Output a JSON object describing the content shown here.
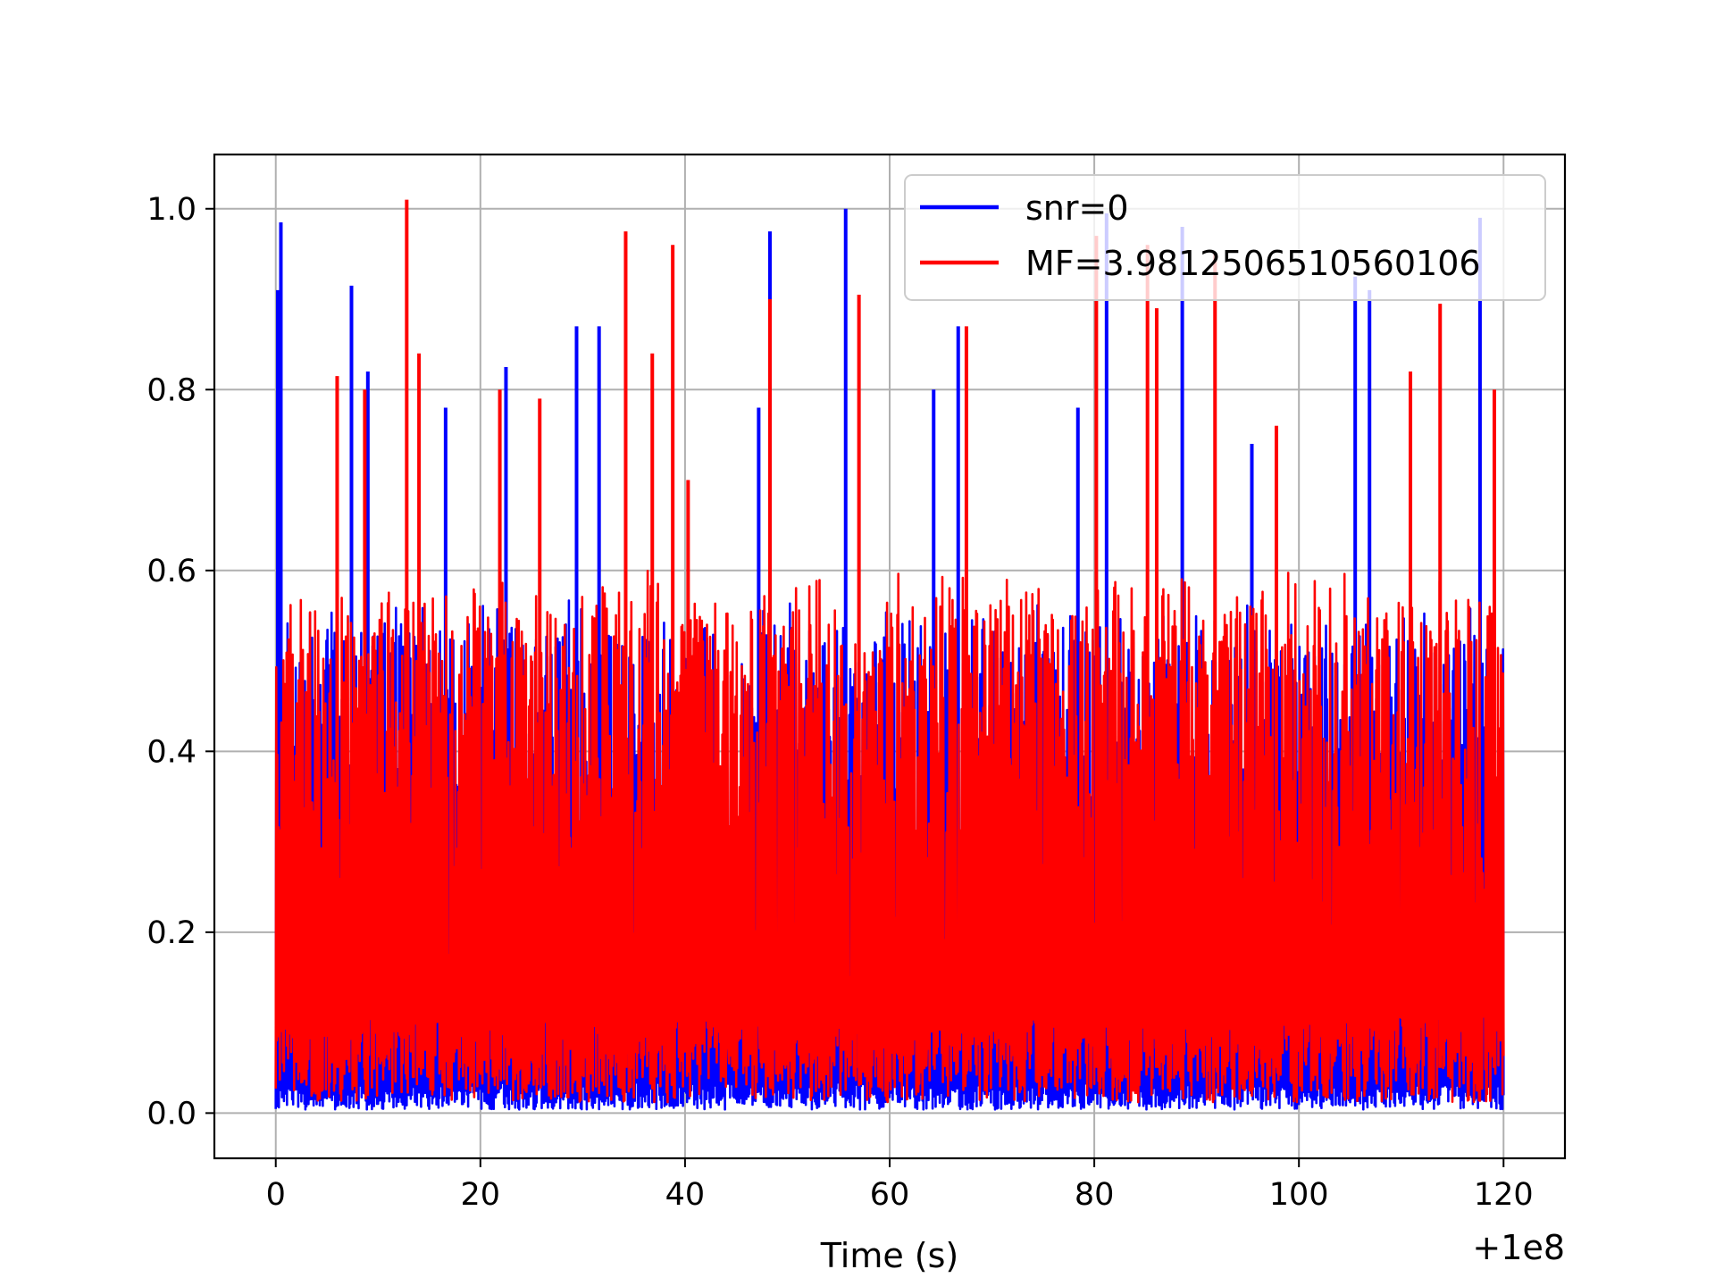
{
  "chart_data": {
    "type": "line",
    "title": "",
    "xlabel": "Time (s)",
    "ylabel": "",
    "x_offset_label": "+1e8",
    "xlim": [
      -6,
      126
    ],
    "ylim": [
      -0.05,
      1.06
    ],
    "x_ticks": [
      0,
      20,
      40,
      60,
      80,
      100,
      120
    ],
    "x_tick_labels": [
      "0",
      "20",
      "40",
      "60",
      "80",
      "100",
      "120"
    ],
    "y_ticks": [
      0.0,
      0.2,
      0.4,
      0.6,
      0.8,
      1.0
    ],
    "y_tick_labels": [
      "0.0",
      "0.2",
      "0.4",
      "0.6",
      "0.8",
      "1.0"
    ],
    "grid": true,
    "legend_position": "top-right",
    "x_range": [
      0,
      120
    ],
    "series": [
      {
        "name": "snr=0",
        "color": "#0000ff",
        "peaks": [
          {
            "x": 0.5,
            "y": 0.985
          },
          {
            "x": 0.2,
            "y": 0.91
          },
          {
            "x": 7.4,
            "y": 0.915
          },
          {
            "x": 9.0,
            "y": 0.82
          },
          {
            "x": 16.6,
            "y": 0.78
          },
          {
            "x": 22.5,
            "y": 0.825
          },
          {
            "x": 29.4,
            "y": 0.87
          },
          {
            "x": 31.6,
            "y": 0.87
          },
          {
            "x": 48.3,
            "y": 0.975
          },
          {
            "x": 47.2,
            "y": 0.78
          },
          {
            "x": 55.7,
            "y": 1.0
          },
          {
            "x": 64.3,
            "y": 0.8
          },
          {
            "x": 66.7,
            "y": 0.87
          },
          {
            "x": 81.2,
            "y": 0.995
          },
          {
            "x": 88.6,
            "y": 0.98
          },
          {
            "x": 95.4,
            "y": 0.74
          },
          {
            "x": 105.5,
            "y": 0.925
          },
          {
            "x": 106.9,
            "y": 0.91
          },
          {
            "x": 117.7,
            "y": 0.99
          },
          {
            "x": 78.4,
            "y": 0.78
          }
        ],
        "peak_level": 0.52,
        "floor_level": 0.02
      },
      {
        "name": "MF=3.9812506510560106",
        "color": "#ff0000",
        "peaks": [
          {
            "x": 12.8,
            "y": 1.01
          },
          {
            "x": 34.2,
            "y": 0.975
          },
          {
            "x": 38.8,
            "y": 0.96
          },
          {
            "x": 48.3,
            "y": 0.9
          },
          {
            "x": 57.0,
            "y": 0.905
          },
          {
            "x": 6.0,
            "y": 0.815
          },
          {
            "x": 8.7,
            "y": 0.8
          },
          {
            "x": 14.0,
            "y": 0.84
          },
          {
            "x": 36.8,
            "y": 0.84
          },
          {
            "x": 21.9,
            "y": 0.8
          },
          {
            "x": 25.8,
            "y": 0.79
          },
          {
            "x": 40.3,
            "y": 0.7
          },
          {
            "x": 67.5,
            "y": 0.87
          },
          {
            "x": 80.2,
            "y": 0.97
          },
          {
            "x": 85.2,
            "y": 0.96
          },
          {
            "x": 91.8,
            "y": 0.95
          },
          {
            "x": 86.1,
            "y": 0.89
          },
          {
            "x": 113.8,
            "y": 0.895
          },
          {
            "x": 119.1,
            "y": 0.8
          },
          {
            "x": 110.9,
            "y": 0.82
          },
          {
            "x": 97.8,
            "y": 0.76
          }
        ],
        "peak_level": 0.55,
        "floor_level": 0.06
      }
    ]
  }
}
